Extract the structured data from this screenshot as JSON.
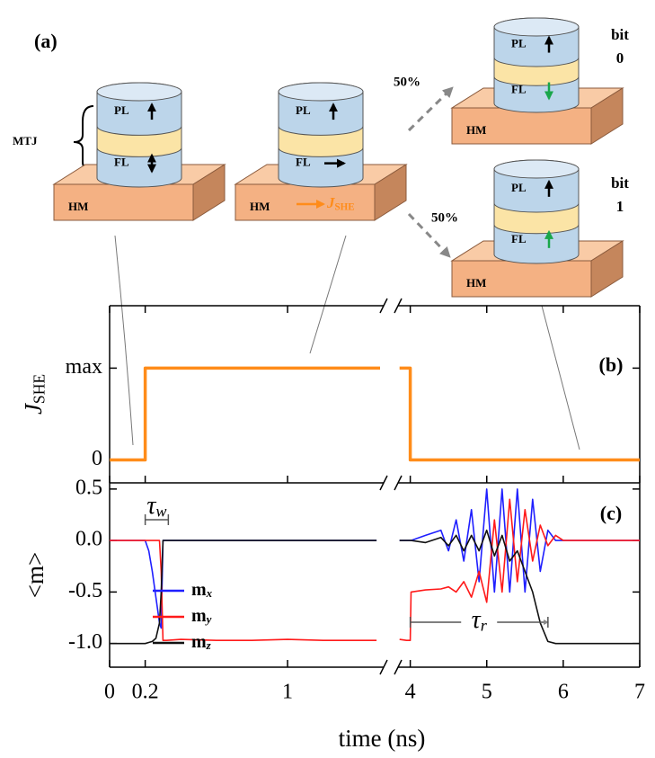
{
  "diagram": {
    "panel_label": "(a)",
    "mtj": "MTJ",
    "devices": [
      {
        "pinned_layer": "PL",
        "free_layer": "FL",
        "heavy_metal": "HM"
      },
      {
        "pinned_layer": "PL",
        "free_layer": "FL",
        "heavy_metal": "HM",
        "current": "JSHE"
      },
      {
        "pinned_layer": "PL",
        "free_layer": "FL",
        "heavy_metal": "HM",
        "probability": "50%",
        "bit_label": "bit",
        "bit_value": "0"
      },
      {
        "pinned_layer": "PL",
        "free_layer": "FL",
        "heavy_metal": "HM",
        "probability": "50%",
        "bit_label": "bit",
        "bit_value": "1"
      }
    ]
  },
  "chart_data": [
    {
      "type": "line",
      "panel_label": "(b)",
      "ylabel": "JSHE",
      "ylim": [
        -0.25,
        1.68
      ],
      "yticks": [
        0,
        {
          "value": 1,
          "label": "max"
        }
      ],
      "x": [
        0,
        0.2,
        0.2,
        1.52,
        3.86,
        4,
        4,
        7
      ],
      "series": [
        {
          "color": "#ff8c1a",
          "values": [
            0,
            0,
            1,
            1,
            1,
            1,
            0,
            0
          ]
        }
      ]
    },
    {
      "type": "line",
      "panel_label": "(c)",
      "ylabel": "<m>",
      "xlabel": "time (ns)",
      "xlim": [
        0,
        7
      ],
      "xbreak": [
        1.54,
        3.84
      ],
      "xticks": [
        0,
        0.2,
        1,
        4,
        5,
        6,
        7
      ],
      "ylim": [
        -1.23,
        0.56
      ],
      "yticks": [
        {
          "value": -1,
          "label": "-1.0"
        },
        -0.5,
        {
          "value": 0,
          "label": "0.0"
        },
        0.5
      ],
      "tau_w": {
        "label": "τw",
        "start": 0.2,
        "end": 0.33
      },
      "tau_r": {
        "label": "τr",
        "start": 4,
        "end": 5.8
      },
      "x": [
        0,
        0.1,
        0.2,
        0.22,
        0.24,
        0.26,
        0.28,
        0.29,
        0.3,
        0.32,
        0.4,
        0.6,
        0.8,
        1.0,
        1.2,
        1.5,
        3.86,
        3.95,
        4.0,
        4.01,
        4.2,
        4.4,
        4.5,
        4.6,
        4.7,
        4.8,
        4.9,
        5.0,
        5.1,
        5.2,
        5.3,
        5.4,
        5.5,
        5.6,
        5.7,
        5.8,
        5.9,
        6.0,
        6.5,
        7.0
      ],
      "series": [
        {
          "name": "mx",
          "color": "#1f1fff",
          "values": [
            0,
            0,
            0,
            -0.1,
            -0.3,
            -0.55,
            -0.8,
            -0.85,
            0,
            0,
            0,
            0,
            0,
            0,
            0,
            0,
            0,
            0,
            0,
            0,
            0.05,
            0.1,
            -0.1,
            0.2,
            -0.2,
            0.3,
            -0.4,
            0.5,
            -0.5,
            0.5,
            -0.5,
            0.5,
            -0.5,
            0.4,
            -0.3,
            0.1,
            0,
            0,
            0,
            0
          ]
        },
        {
          "name": "my",
          "color": "#ff1a1a",
          "values": [
            0,
            0,
            0,
            0,
            0,
            0,
            0,
            -0.3,
            -0.97,
            -0.97,
            -0.96,
            -0.97,
            -0.97,
            -0.96,
            -0.97,
            -0.97,
            -0.96,
            -0.97,
            -0.97,
            -0.5,
            -0.48,
            -0.47,
            -0.45,
            -0.5,
            -0.4,
            -0.55,
            -0.3,
            -0.6,
            0.2,
            -0.5,
            0.4,
            -0.4,
            0.3,
            -0.2,
            0.15,
            -0.05,
            0.05,
            0,
            0,
            0
          ]
        },
        {
          "name": "mz",
          "color": "#111111",
          "values": [
            -1,
            -1,
            -1,
            -0.99,
            -0.98,
            -0.95,
            -0.8,
            -0.5,
            0,
            0,
            0,
            0,
            0,
            0,
            0,
            0,
            0,
            0,
            0,
            0,
            -0.02,
            0.03,
            -0.05,
            0.05,
            -0.1,
            0.05,
            -0.1,
            0.1,
            -0.15,
            0.05,
            -0.2,
            -0.1,
            -0.3,
            -0.5,
            -0.8,
            -0.98,
            -1,
            -1,
            -1,
            -1
          ]
        }
      ]
    }
  ]
}
